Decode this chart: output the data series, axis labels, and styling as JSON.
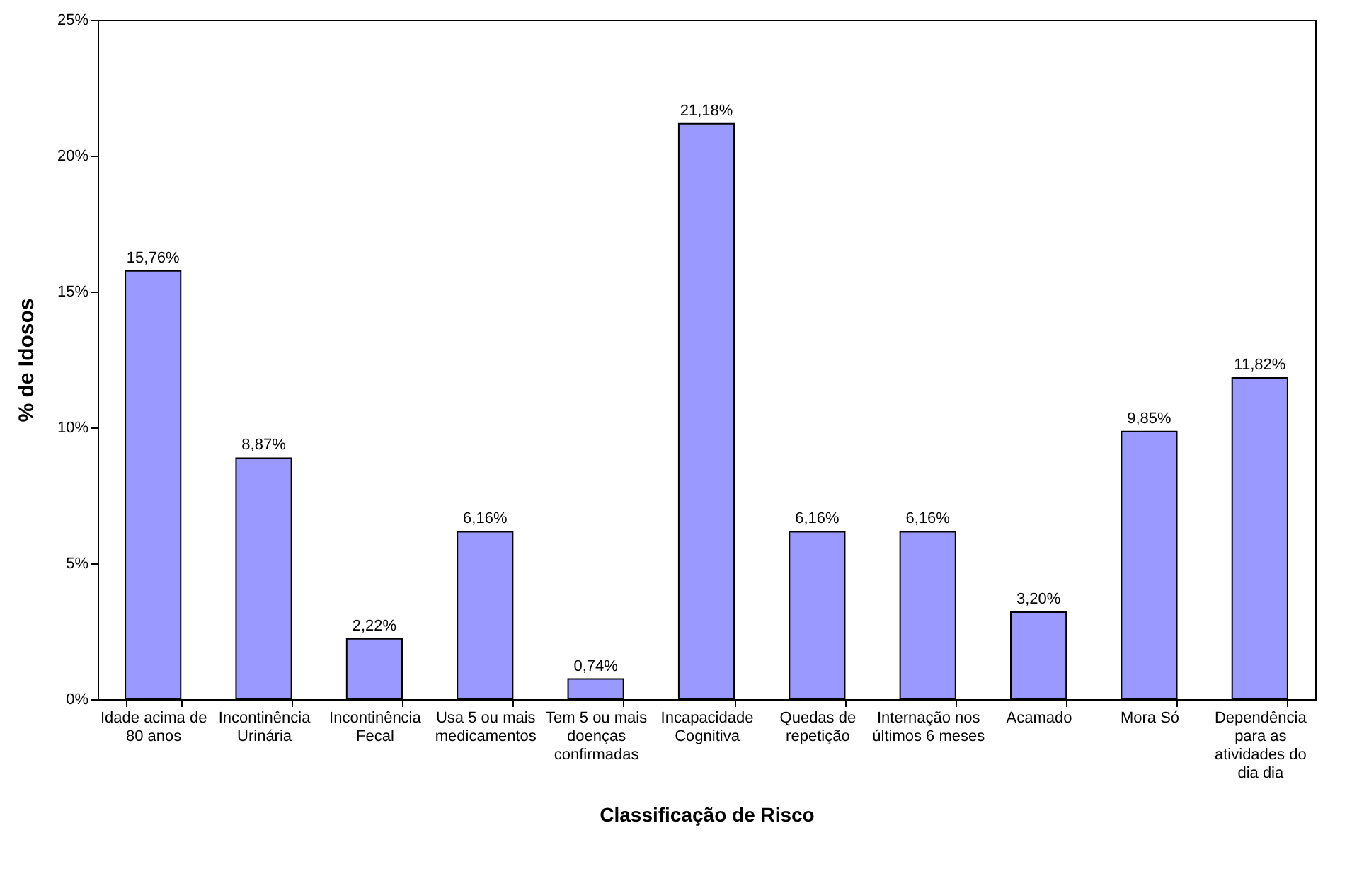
{
  "chart_data": {
    "type": "bar",
    "xlabel": "Classificação de Risco",
    "ylabel": "% de Idosos",
    "categories": [
      "Idade acima de 80 anos",
      "Incontinência Urinária",
      "Incontinência Fecal",
      "Usa 5 ou mais medicamentos",
      "Tem 5 ou mais doenças confirmadas",
      "Incapacidade Cognitiva",
      "Quedas de repetição",
      "Internação nos últimos 6 meses",
      "Acamado",
      "Mora Só",
      "Dependência para as atividades do dia dia"
    ],
    "values": [
      15.76,
      8.87,
      2.22,
      6.16,
      0.74,
      21.18,
      6.16,
      6.16,
      3.2,
      9.85,
      11.82
    ],
    "value_labels": [
      "15,76%",
      "8,87%",
      "2,22%",
      "6,16%",
      "0,74%",
      "21,18%",
      "6,16%",
      "6,16%",
      "3,20%",
      "9,85%",
      "11,82%"
    ],
    "color": "#9999ff",
    "ylim": [
      0,
      25
    ],
    "yticks": [
      {
        "value": 0,
        "label": "0%"
      },
      {
        "value": 5,
        "label": "5%"
      },
      {
        "value": 10,
        "label": "10%"
      },
      {
        "value": 15,
        "label": "15%"
      },
      {
        "value": 20,
        "label": "20%"
      },
      {
        "value": 25,
        "label": "25%"
      }
    ],
    "grid": false
  }
}
